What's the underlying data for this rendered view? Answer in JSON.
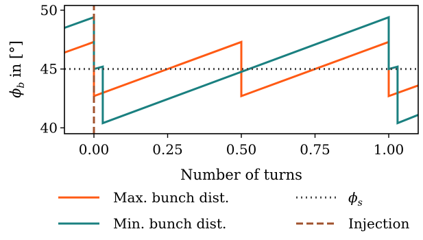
{
  "chart_data": {
    "type": "line",
    "title": "",
    "xlabel": "Number of turns",
    "ylabel_main": "ϕ",
    "ylabel_sub": "b",
    "ylabel_rest": " in [°]",
    "xlim": [
      -0.1,
      1.1
    ],
    "ylim": [
      39.5,
      50.4
    ],
    "xticks": [
      0.0,
      0.25,
      0.5,
      0.75,
      1.0
    ],
    "xtick_labels": [
      "0.00",
      "0.25",
      "0.50",
      "0.75",
      "1.00"
    ],
    "yticks": [
      40,
      45,
      50
    ],
    "ytick_labels": [
      "40",
      "45",
      "50"
    ],
    "series": [
      {
        "name": "Max. bunch dist.",
        "color": "#ff5a14",
        "style": "solid",
        "x": [
          -0.1,
          0.0,
          0.0,
          0.5,
          0.5,
          1.0,
          1.0,
          1.1
        ],
        "y": [
          46.4,
          47.3,
          42.7,
          47.3,
          42.7,
          47.3,
          42.7,
          43.6
        ]
      },
      {
        "name": "Min. bunch dist.",
        "color": "#1a8080",
        "style": "solid",
        "x": [
          -0.1,
          0.0,
          0.0,
          0.03,
          0.03,
          1.0,
          1.0,
          1.03,
          1.03,
          1.1
        ],
        "y": [
          48.5,
          49.4,
          45.0,
          45.2,
          40.4,
          49.4,
          45.0,
          45.2,
          40.4,
          41.1
        ]
      },
      {
        "name": "ϕ",
        "name_sub": "s",
        "color": "#444444",
        "style": "dotted",
        "x": [
          -0.1,
          1.1
        ],
        "y": [
          45.0,
          45.0
        ]
      },
      {
        "name": "Injection",
        "color": "#a0522d",
        "style": "dashed",
        "x": [
          0.0,
          0.0
        ],
        "y": [
          39.5,
          50.4
        ]
      }
    ],
    "legend_position": "below, two columns",
    "grid": false
  }
}
